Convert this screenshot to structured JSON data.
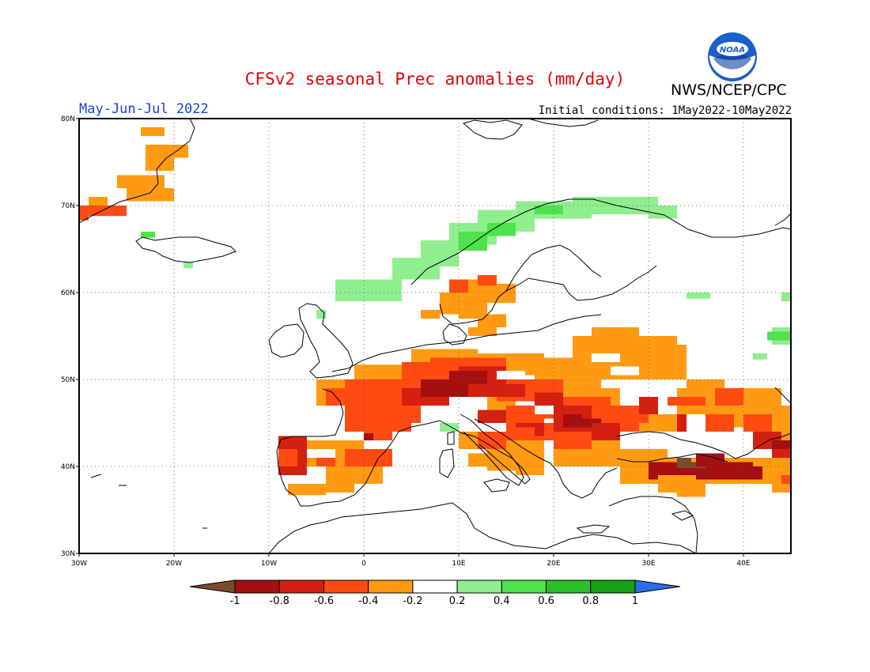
{
  "title": "CFSv2 seasonal Prec anomalies (mm/day)",
  "agency": "NWS/NCEP/CPC",
  "logo_text": "NOAA",
  "period": "May-Jun-Jul 2022",
  "initial_conditions": "Initial conditions: 1May2022-10May2022",
  "map": {
    "lon_range": [
      -30,
      45
    ],
    "lat_range": [
      30,
      80
    ],
    "lon_ticks": [
      {
        "value": -30,
        "label": "30W"
      },
      {
        "value": -20,
        "label": "20W"
      },
      {
        "value": -10,
        "label": "10W"
      },
      {
        "value": 0,
        "label": "0"
      },
      {
        "value": 10,
        "label": "10E"
      },
      {
        "value": 20,
        "label": "20E"
      },
      {
        "value": 30,
        "label": "30E"
      },
      {
        "value": 40,
        "label": "40E"
      }
    ],
    "lat_ticks": [
      {
        "value": 30,
        "label": "30N"
      },
      {
        "value": 40,
        "label": "40N"
      },
      {
        "value": 50,
        "label": "50N"
      },
      {
        "value": 60,
        "label": "60N"
      },
      {
        "value": 70,
        "label": "70N"
      },
      {
        "value": 80,
        "label": "80N"
      }
    ],
    "grid": "dotted"
  },
  "colorbar": {
    "labels": [
      "-1",
      "-0.8",
      "-0.6",
      "-0.4",
      "-0.2",
      "0.2",
      "0.4",
      "0.6",
      "0.8",
      "1"
    ],
    "colors": [
      "#7a4a2e",
      "#a50f0f",
      "#d42010",
      "#ff4a12",
      "#ff9a12",
      "#ffffff",
      "#8fef8f",
      "#4ee24e",
      "#2cbf2c",
      "#16a016",
      "#2a6fe8"
    ]
  },
  "legend_colors": {
    "brown": "#7a4a2e",
    "dark_red": "#a50f0f",
    "red": "#d42010",
    "orange_red": "#ff4a12",
    "orange": "#ff9a12",
    "light_green": "#8fef8f",
    "green": "#4ee24e"
  }
}
